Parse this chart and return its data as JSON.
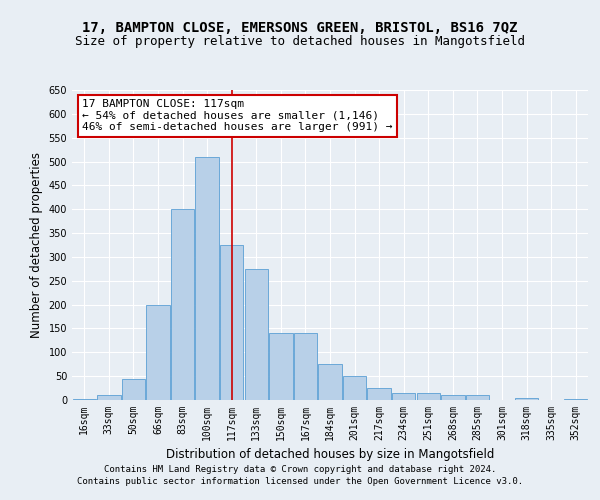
{
  "title_line1": "17, BAMPTON CLOSE, EMERSONS GREEN, BRISTOL, BS16 7QZ",
  "title_line2": "Size of property relative to detached houses in Mangotsfield",
  "xlabel": "Distribution of detached houses by size in Mangotsfield",
  "ylabel": "Number of detached properties",
  "categories": [
    "16sqm",
    "33sqm",
    "50sqm",
    "66sqm",
    "83sqm",
    "100sqm",
    "117sqm",
    "133sqm",
    "150sqm",
    "167sqm",
    "184sqm",
    "201sqm",
    "217sqm",
    "234sqm",
    "251sqm",
    "268sqm",
    "285sqm",
    "301sqm",
    "318sqm",
    "335sqm",
    "352sqm"
  ],
  "values": [
    3,
    10,
    45,
    200,
    400,
    510,
    325,
    275,
    140,
    140,
    75,
    50,
    25,
    15,
    15,
    10,
    10,
    0,
    5,
    0,
    3
  ],
  "bar_color": "#b8d0e8",
  "bar_edge_color": "#5a9fd4",
  "vline_x_idx": 6,
  "vline_color": "#cc0000",
  "annotation_text": "17 BAMPTON CLOSE: 117sqm\n← 54% of detached houses are smaller (1,146)\n46% of semi-detached houses are larger (991) →",
  "annotation_box_color": "white",
  "annotation_box_edge": "#cc0000",
  "ylim": [
    0,
    650
  ],
  "yticks": [
    0,
    50,
    100,
    150,
    200,
    250,
    300,
    350,
    400,
    450,
    500,
    550,
    600,
    650
  ],
  "bg_color": "#e8eef4",
  "plot_bg_color": "#e8eef4",
  "footer_line1": "Contains HM Land Registry data © Crown copyright and database right 2024.",
  "footer_line2": "Contains public sector information licensed under the Open Government Licence v3.0.",
  "title_fontsize": 10,
  "subtitle_fontsize": 9,
  "axis_label_fontsize": 8.5,
  "tick_fontsize": 7,
  "annotation_fontsize": 8,
  "footer_fontsize": 6.5
}
